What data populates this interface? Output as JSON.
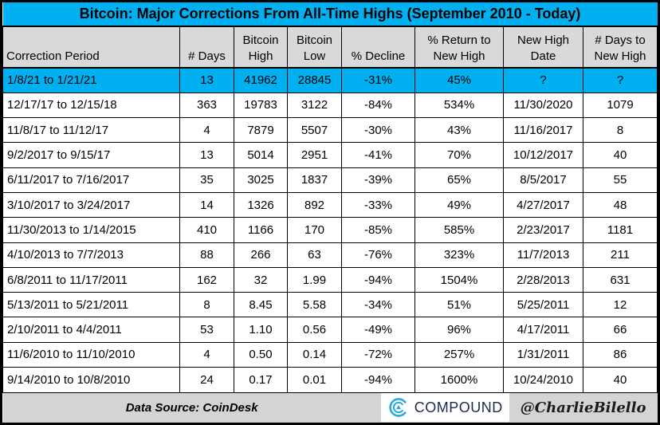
{
  "chart_data": {
    "type": "table",
    "title": "Bitcoin: Major Corrections From All-Time Highs (September 2010 - Today)",
    "columns": [
      "Correction Period",
      "# Days",
      "Bitcoin High",
      "Bitcoin Low",
      "% Decline",
      "% Return to New High",
      "New High Date",
      "# Days to New High"
    ],
    "rows": [
      [
        "1/8/21 to 1/21/21",
        "13",
        "41962",
        "28845",
        "-31%",
        "45%",
        "?",
        "?"
      ],
      [
        "12/17/17 to 12/15/18",
        "363",
        "19783",
        "3122",
        "-84%",
        "534%",
        "11/30/2020",
        "1079"
      ],
      [
        "11/8/17 to 11/12/17",
        "4",
        "7879",
        "5507",
        "-30%",
        "43%",
        "11/16/2017",
        "8"
      ],
      [
        "9/2/2017 to 9/15/17",
        "13",
        "5014",
        "2951",
        "-41%",
        "70%",
        "10/12/2017",
        "40"
      ],
      [
        "6/11/2017 to 7/16/2017",
        "35",
        "3025",
        "1837",
        "-39%",
        "65%",
        "8/5/2017",
        "55"
      ],
      [
        "3/10/2017 to 3/24/2017",
        "14",
        "1326",
        "892",
        "-33%",
        "49%",
        "4/27/2017",
        "48"
      ],
      [
        "11/30/2013 to 1/14/2015",
        "410",
        "1166",
        "170",
        "-85%",
        "585%",
        "2/23/2017",
        "1181"
      ],
      [
        "4/10/2013 to 7/7/2013",
        "88",
        "266",
        "63",
        "-76%",
        "323%",
        "11/7/2013",
        "211"
      ],
      [
        "6/8/2011 to 11/17/2011",
        "162",
        "32",
        "1.99",
        "-94%",
        "1504%",
        "2/28/2013",
        "631"
      ],
      [
        "5/13/2011 to 5/21/2011",
        "8",
        "8.45",
        "5.58",
        "-34%",
        "51%",
        "5/25/2011",
        "12"
      ],
      [
        "2/10/2011 to 4/4/2011",
        "53",
        "1.10",
        "0.56",
        "-49%",
        "96%",
        "4/17/2011",
        "66"
      ],
      [
        "11/6/2010 to 11/10/2010",
        "4",
        "0.50",
        "0.14",
        "-72%",
        "257%",
        "1/31/2011",
        "86"
      ],
      [
        "9/14/2010 to 10/8/2010",
        "24",
        "0.17",
        "0.01",
        "-94%",
        "1600%",
        "10/24/2010",
        "40"
      ]
    ],
    "highlighted_row": 0,
    "footer": {
      "source": "Data Source: CoinDesk",
      "brand": "COMPOUND",
      "handle": "@CharlieBilello"
    }
  },
  "colors": {
    "highlight_cyan": "#00b0f0",
    "header_gray": "#d9d9d9",
    "footer_gray": "#d4d4d4",
    "brand_navy": "#1d2b50",
    "logo_cyan": "#29abe2"
  }
}
